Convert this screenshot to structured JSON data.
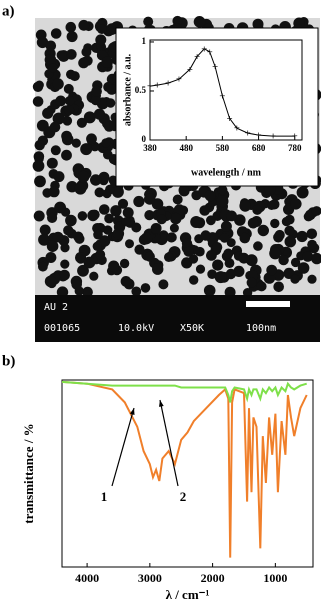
{
  "panel_labels": [
    "a)",
    "b)"
  ],
  "tem_text": [
    "AU 2",
    "001065",
    "10.0kV",
    "X50K",
    "100nm"
  ],
  "chart_data": [
    {
      "type": "line",
      "x_label": "wavelength / nm",
      "y_label": "absorbance / a.u.",
      "x": [
        380,
        400,
        430,
        460,
        490,
        510,
        530,
        545,
        560,
        580,
        600,
        620,
        650,
        680,
        720,
        780
      ],
      "series": [
        {
          "color": "#000000",
          "values": [
            0.55,
            0.56,
            0.58,
            0.62,
            0.72,
            0.85,
            0.93,
            0.9,
            0.75,
            0.45,
            0.22,
            0.12,
            0.07,
            0.05,
            0.04,
            0.04
          ]
        }
      ],
      "xlim": [
        380,
        800
      ],
      "xticks": [
        380,
        480,
        580,
        680,
        780
      ],
      "ylim": [
        0,
        1.02
      ],
      "yticks": [
        0,
        0.5,
        1
      ]
    },
    {
      "type": "line",
      "x_label": "λ / cm⁻¹",
      "y_label": "transmittance / %",
      "x": [
        4400,
        4000,
        3600,
        3400,
        3200,
        3100,
        3000,
        2950,
        2900,
        2850,
        2800,
        2700,
        2600,
        2500,
        2400,
        2300,
        2100,
        1900,
        1800,
        1750,
        1720,
        1690,
        1650,
        1500,
        1450,
        1420,
        1380,
        1350,
        1300,
        1240,
        1200,
        1150,
        1100,
        1050,
        1000,
        960,
        900,
        840,
        800,
        750,
        700,
        600,
        500
      ],
      "series": [
        {
          "color": "#f07f2a",
          "values": [
            99,
            98,
            95,
            88,
            75,
            62,
            55,
            48,
            52,
            46,
            58,
            62,
            55,
            68,
            72,
            78,
            85,
            92,
            95,
            90,
            5,
            88,
            95,
            93,
            35,
            85,
            40,
            80,
            75,
            10,
            70,
            45,
            80,
            60,
            82,
            40,
            78,
            60,
            92,
            80,
            70,
            85,
            92
          ]
        },
        {
          "color": "#7ee04a",
          "values": [
            99,
            98,
            97,
            97,
            97,
            97,
            97,
            97,
            97,
            97,
            97,
            97,
            97,
            96,
            96,
            96,
            96,
            96,
            96,
            92,
            88,
            94,
            96,
            95,
            90,
            95,
            92,
            95,
            95,
            90,
            95,
            93,
            96,
            94,
            96,
            92,
            96,
            94,
            98,
            96,
            95,
            97,
            98
          ]
        }
      ],
      "annotations": [
        "1",
        "2"
      ],
      "xlim": [
        4400,
        400
      ],
      "xticks": [
        4000,
        3000,
        2000,
        1000
      ],
      "ylim": [
        0,
        100
      ]
    }
  ]
}
